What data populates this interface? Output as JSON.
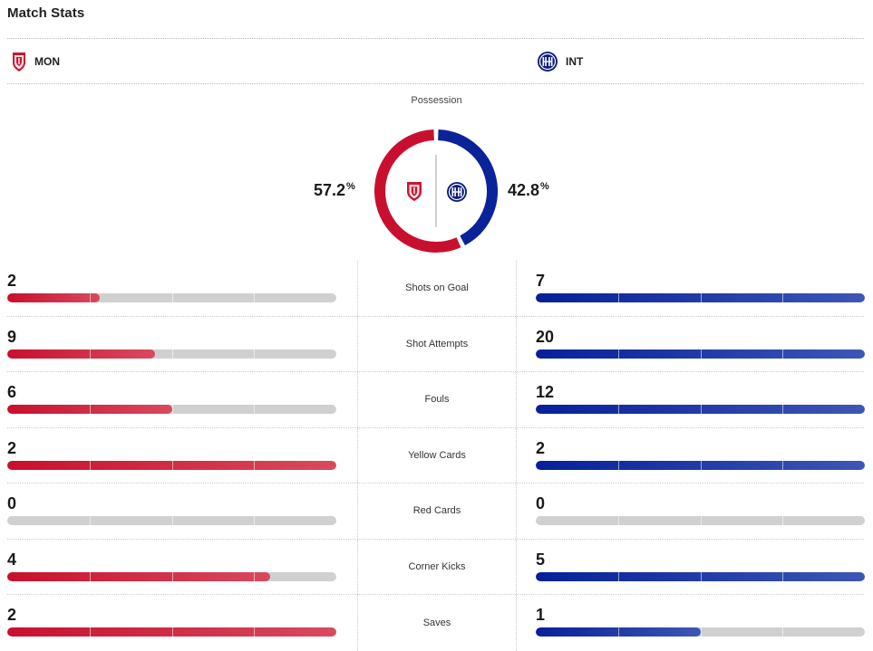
{
  "title": "Match Stats",
  "teams": {
    "home": {
      "abbr": "MON",
      "color": "#c8102e",
      "logo_icon": "monza-crest-icon"
    },
    "away": {
      "abbr": "INT",
      "color": "#0a2399",
      "logo_icon": "inter-crest-icon"
    }
  },
  "possession": {
    "label": "Possession",
    "home_pct": "57.2",
    "away_pct": "42.8",
    "unit": "%"
  },
  "stats": [
    {
      "label": "Shots on Goal",
      "home": 2,
      "away": 7,
      "home_fill": 0.28,
      "away_fill": 1.0
    },
    {
      "label": "Shot Attempts",
      "home": 9,
      "away": 20,
      "home_fill": 0.45,
      "away_fill": 1.0
    },
    {
      "label": "Fouls",
      "home": 6,
      "away": 12,
      "home_fill": 0.5,
      "away_fill": 1.0
    },
    {
      "label": "Yellow Cards",
      "home": 2,
      "away": 2,
      "home_fill": 1.0,
      "away_fill": 1.0
    },
    {
      "label": "Red Cards",
      "home": 0,
      "away": 0,
      "home_fill": 0,
      "away_fill": 0
    },
    {
      "label": "Corner Kicks",
      "home": 4,
      "away": 5,
      "home_fill": 0.8,
      "away_fill": 1.0
    },
    {
      "label": "Saves",
      "home": 2,
      "away": 1,
      "home_fill": 1.0,
      "away_fill": 0.5
    }
  ]
}
